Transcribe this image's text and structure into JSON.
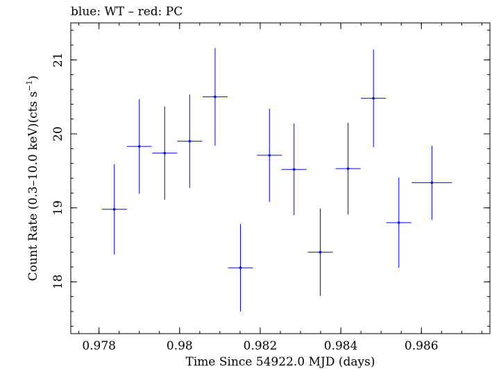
{
  "chart_data": {
    "type": "scatter",
    "title": "blue: WT – red: PC",
    "xlabel": "Time Since 54922.0 MJD (days)",
    "ylabel_main": "Count Rate (0.3–10.0 keV)(cts s",
    "ylabel_sup": "−1",
    "ylabel_end": ")",
    "xlim": [
      0.9773,
      0.9877
    ],
    "ylim": [
      17.3,
      21.5
    ],
    "xticks": [
      0.978,
      0.98,
      0.982,
      0.984,
      0.986
    ],
    "xtick_labels": [
      "0.978",
      "0.98",
      "0.982",
      "0.984",
      "0.986"
    ],
    "xminor_step": 0.0005,
    "yticks": [
      18,
      19,
      20,
      21
    ],
    "ytick_labels": [
      "18",
      "19",
      "20",
      "21"
    ],
    "yminor_step": 0.2,
    "grid": false,
    "series": [
      {
        "color": "#0000ff",
        "points": [
          {
            "x": 0.97838,
            "y": 18.98,
            "xerr": 0.00031,
            "yerr": 0.61
          },
          {
            "x": 0.979,
            "y": 19.83,
            "xerr": 0.00031,
            "yerr": 0.64
          },
          {
            "x": 0.97963,
            "y": 19.74,
            "xerr": 0.00031,
            "yerr": 0.63
          },
          {
            "x": 0.98025,
            "y": 19.9,
            "xerr": 0.00031,
            "yerr": 0.63
          },
          {
            "x": 0.98088,
            "y": 20.5,
            "xerr": 0.00031,
            "yerr": 0.66
          },
          {
            "x": 0.98151,
            "y": 18.19,
            "xerr": 0.00031,
            "yerr": 0.59
          },
          {
            "x": 0.98223,
            "y": 19.71,
            "xerr": 0.00031,
            "yerr": 0.63
          },
          {
            "x": 0.98284,
            "y": 19.52,
            "xerr": 0.00031,
            "yerr": 0.62
          },
          {
            "x": 0.98349,
            "y": 18.4,
            "xerr": 0.00031,
            "yerr": 0.59
          },
          {
            "x": 0.98418,
            "y": 19.53,
            "xerr": 0.00031,
            "yerr": 0.62
          },
          {
            "x": 0.98481,
            "y": 20.48,
            "xerr": 0.00031,
            "yerr": 0.66
          },
          {
            "x": 0.98544,
            "y": 18.8,
            "xerr": 0.00031,
            "yerr": 0.61
          },
          {
            "x": 0.98626,
            "y": 19.34,
            "xerr": 0.0005,
            "yerr": 0.5
          }
        ]
      }
    ]
  }
}
